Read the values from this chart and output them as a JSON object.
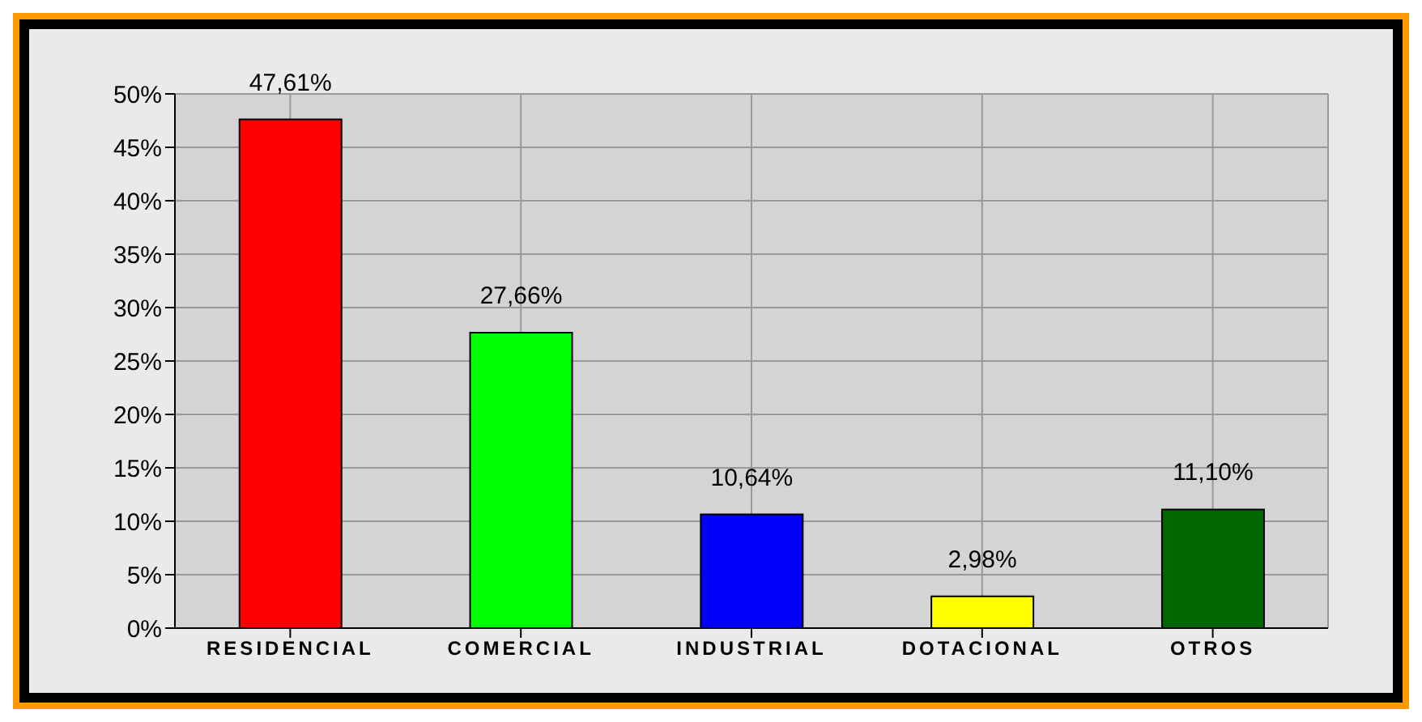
{
  "chart_data": {
    "type": "bar",
    "categories": [
      "RESIDENCIAL",
      "COMERCIAL",
      "INDUSTRIAL",
      "DOTACIONAL",
      "OTROS"
    ],
    "values": [
      47.61,
      27.66,
      10.64,
      2.98,
      11.1
    ],
    "colors": [
      "#ff0000",
      "#00ff00",
      "#0000ff",
      "#ffff00",
      "#006600"
    ],
    "value_labels": [
      "47,61%",
      "27,66%",
      "10,64%",
      "2,98%",
      "11,10%"
    ],
    "ylim": [
      0,
      50
    ],
    "yticks": [
      {
        "value": 0,
        "label": "0%"
      },
      {
        "value": 5,
        "label": "5%"
      },
      {
        "value": 10,
        "label": "10%"
      },
      {
        "value": 15,
        "label": "15%"
      },
      {
        "value": 20,
        "label": "20%"
      },
      {
        "value": 25,
        "label": "25%"
      },
      {
        "value": 30,
        "label": "30%"
      },
      {
        "value": 35,
        "label": "35%"
      },
      {
        "value": 40,
        "label": "40%"
      },
      {
        "value": 45,
        "label": "45%"
      },
      {
        "value": 50,
        "label": "50%"
      }
    ],
    "grid": true,
    "legend": false
  }
}
